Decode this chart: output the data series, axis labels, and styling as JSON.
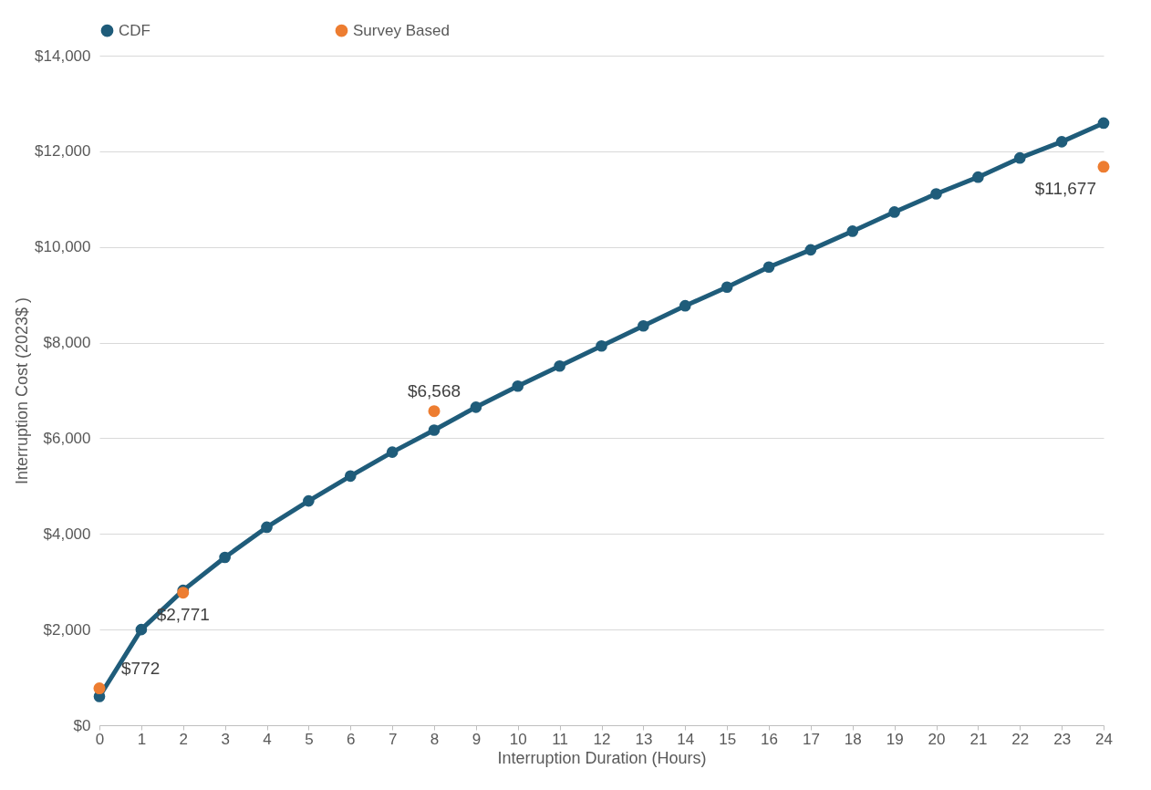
{
  "chart_data": {
    "type": "line",
    "xlabel": "Interruption Duration (Hours)",
    "ylabel": "Interruption Cost (2023$ )",
    "x": [
      0,
      1,
      2,
      3,
      4,
      5,
      6,
      7,
      8,
      9,
      10,
      11,
      12,
      13,
      14,
      15,
      16,
      17,
      18,
      19,
      20,
      21,
      22,
      23,
      24
    ],
    "series": [
      {
        "name": "CDF",
        "color": "#1f5c7a",
        "values": [
          600,
          2000,
          2820,
          3510,
          4140,
          4690,
          5210,
          5710,
          6170,
          6650,
          7090,
          7510,
          7930,
          8350,
          8770,
          9160,
          9580,
          9940,
          10330,
          10730,
          11110,
          11460,
          11860,
          12200,
          12590
        ]
      },
      {
        "name": "Survey Based",
        "type": "scatter",
        "color": "#ed7d31",
        "x": [
          0,
          2,
          8,
          24
        ],
        "values": [
          772,
          2771,
          6568,
          11677
        ],
        "value_labels": [
          "$772",
          "$2,771",
          "$6,568",
          "$11,677"
        ]
      }
    ],
    "xlim": [
      0,
      24
    ],
    "xticks": [
      0,
      1,
      2,
      3,
      4,
      5,
      6,
      7,
      8,
      9,
      10,
      11,
      12,
      13,
      14,
      15,
      16,
      17,
      18,
      19,
      20,
      21,
      22,
      23,
      24
    ],
    "ylim": [
      0,
      14000
    ],
    "yticks": [
      {
        "value": 0,
        "label": "$0"
      },
      {
        "value": 2000,
        "label": "$2,000"
      },
      {
        "value": 4000,
        "label": "$4,000"
      },
      {
        "value": 6000,
        "label": "$6,000"
      },
      {
        "value": 8000,
        "label": "$8,000"
      },
      {
        "value": 10000,
        "label": "$10,000"
      },
      {
        "value": 12000,
        "label": "$12,000"
      },
      {
        "value": 14000,
        "label": "$14,000"
      }
    ],
    "grid": "y",
    "legend": "top",
    "marker": "circle",
    "line_style": "solid"
  }
}
